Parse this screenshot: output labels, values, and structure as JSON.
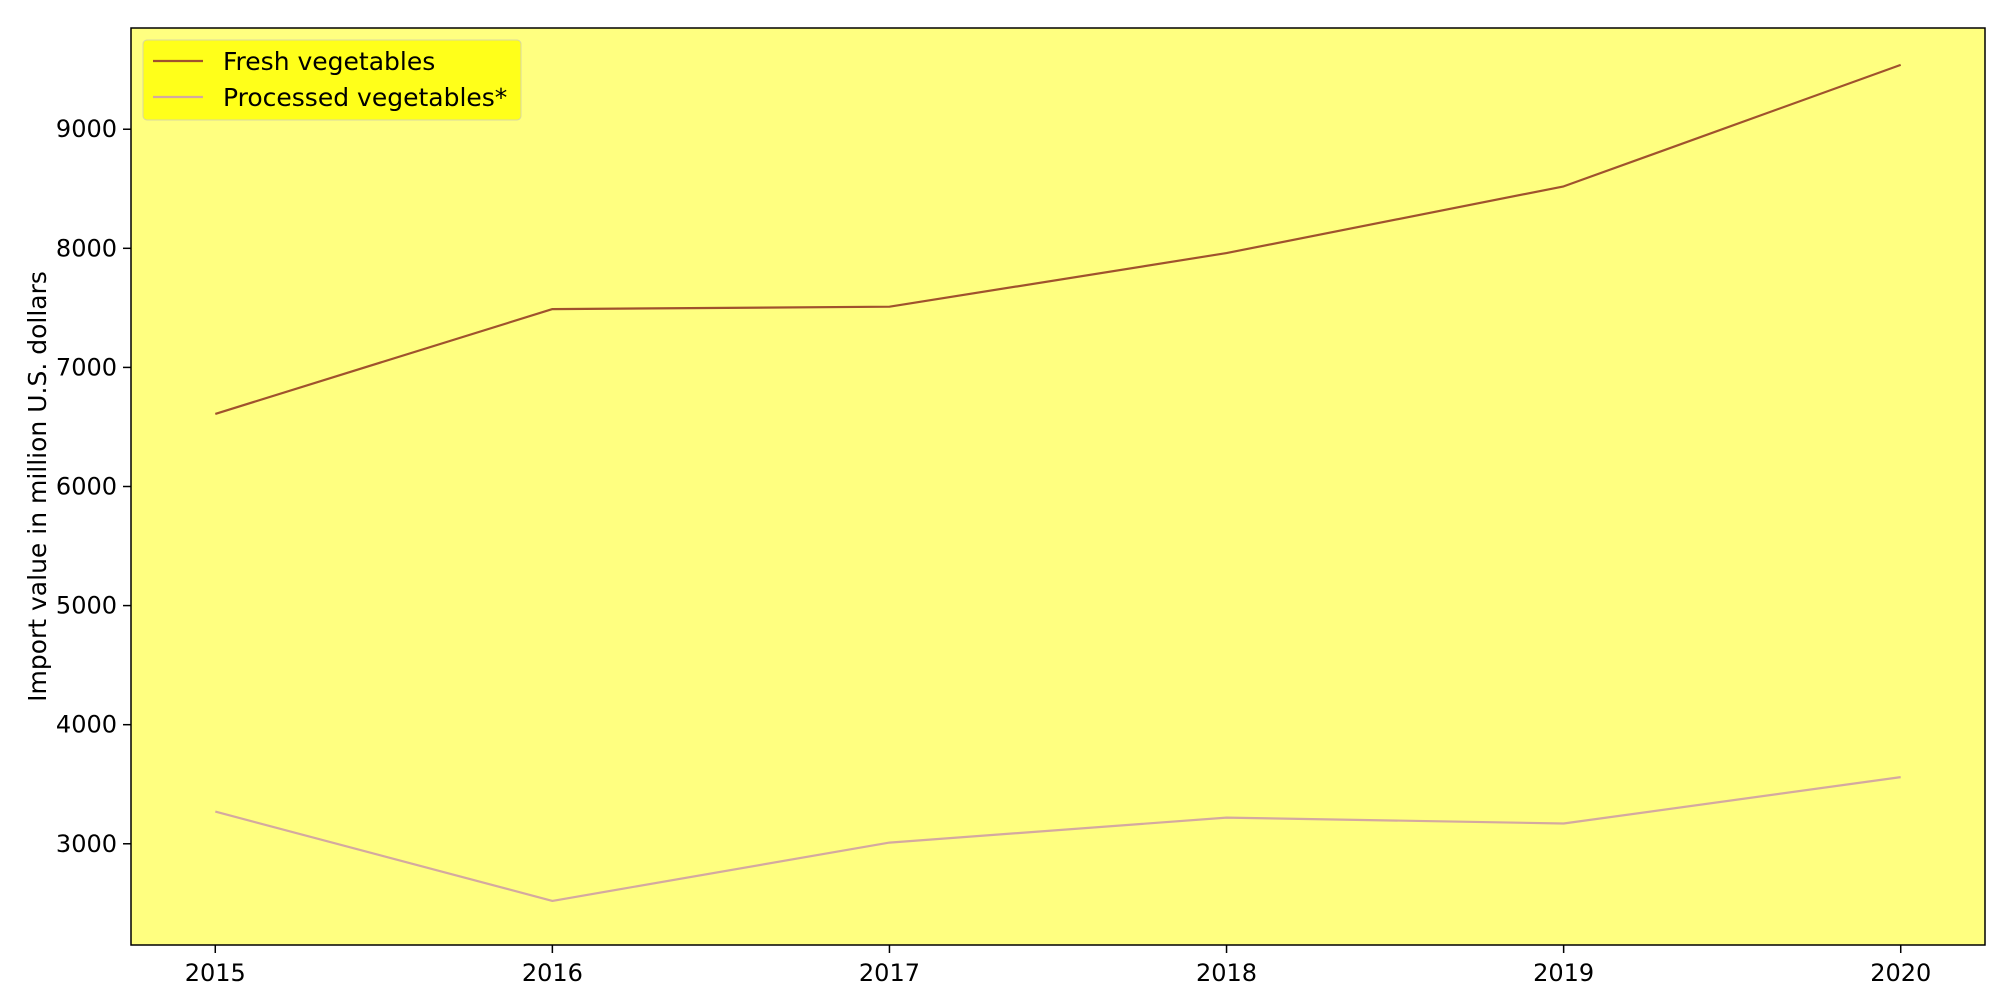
{
  "chart_data": {
    "type": "line",
    "title": "",
    "xlabel": "",
    "ylabel": "Import value in million U.S. dollars",
    "x": [
      2015,
      2016,
      2017,
      2018,
      2019,
      2020
    ],
    "xlim": [
      2014.75,
      2020.25
    ],
    "ylim": [
      2150,
      9850
    ],
    "yticks": [
      3000,
      4000,
      5000,
      6000,
      7000,
      8000,
      9000
    ],
    "xticks": [
      2015,
      2016,
      2017,
      2018,
      2019,
      2020
    ],
    "grid": false,
    "legend_position": "top-left",
    "plot_background": "#ffff80",
    "legend_background": "#ffff1a",
    "series": [
      {
        "name": "Fresh vegetables",
        "color": "#a0522d",
        "values": [
          6610,
          7490,
          7510,
          7960,
          8520,
          9540
        ]
      },
      {
        "name": "Processed vegetables*",
        "color": "#d4a9a0",
        "values": [
          3270,
          2520,
          3010,
          3220,
          3170,
          3560
        ]
      }
    ]
  }
}
